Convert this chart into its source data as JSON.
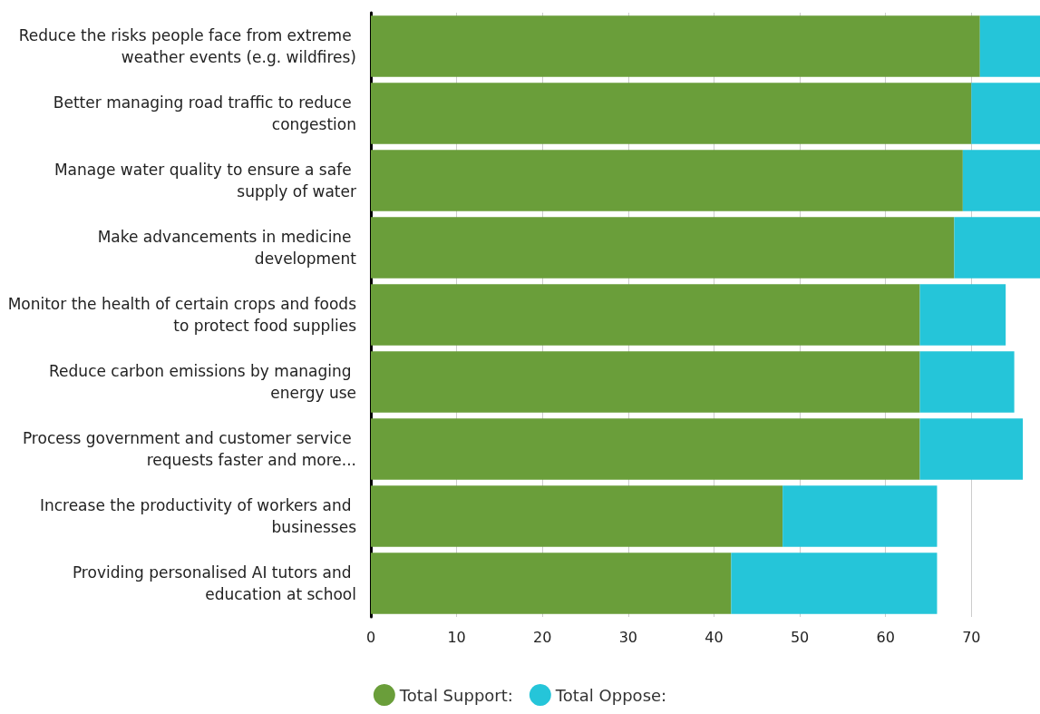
{
  "chart_data": {
    "type": "bar",
    "orientation": "horizontal",
    "stacked": true,
    "categories": [
      "Reduce the risks people face from extreme weather events (e.g. wildfires)",
      "Better managing road traffic to reduce congestion",
      "Manage water quality to ensure a safe supply of water",
      "Make advancements in medicine development",
      "Monitor the health of certain crops and foods to protect food supplies",
      "Reduce carbon emissions by managing energy use",
      "Process government and customer service requests faster and more...",
      "Increase the productivity of workers and businesses",
      "Providing personalised AI tutors and education at school"
    ],
    "series": [
      {
        "name": "Total Support:",
        "color": "#6a9e3a",
        "values": [
          71,
          70,
          69,
          68,
          64,
          64,
          64,
          48,
          42
        ]
      },
      {
        "name": "Total Oppose:",
        "color": "#25c5d9",
        "values": [
          7,
          8,
          9,
          10,
          10,
          11,
          12,
          18,
          24
        ]
      }
    ],
    "xlim": [
      0,
      78
    ],
    "xticks": [
      0,
      10,
      20,
      30,
      40,
      50,
      60,
      70
    ],
    "grid": "x",
    "legend": "bottom"
  }
}
